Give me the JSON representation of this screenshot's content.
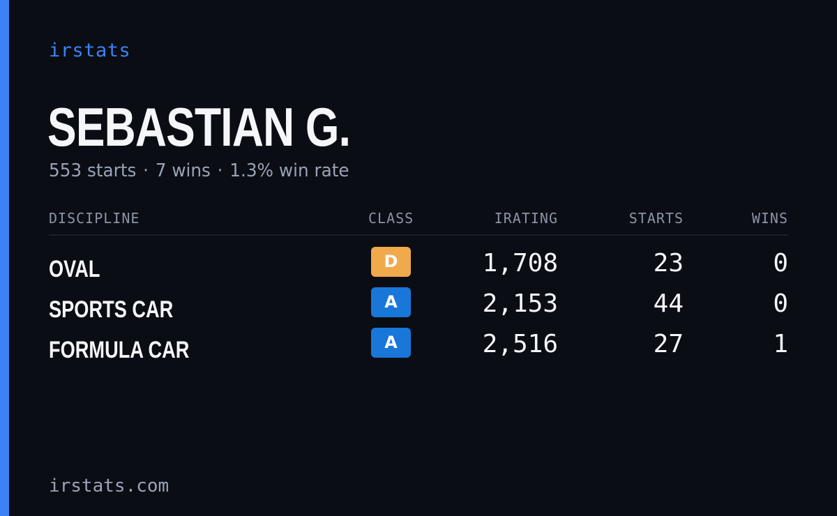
{
  "brand": "irstats",
  "driver": {
    "name": "SEBASTIAN G.",
    "summary": {
      "starts": "553 starts",
      "wins": "7 wins",
      "win_rate": "1.3% win rate",
      "separator": "·"
    }
  },
  "table": {
    "headers": {
      "discipline": "DISCIPLINE",
      "class": "CLASS",
      "irating": "IRATING",
      "starts": "STARTS",
      "wins": "WINS"
    },
    "rows": [
      {
        "discipline": "OVAL",
        "class": "D",
        "class_color": "#f0a94b",
        "irating": "1,708",
        "starts": "23",
        "wins": "0"
      },
      {
        "discipline": "SPORTS CAR",
        "class": "A",
        "class_color": "#1877d8",
        "irating": "2,153",
        "starts": "44",
        "wins": "0"
      },
      {
        "discipline": "FORMULA CAR",
        "class": "A",
        "class_color": "#1877d8",
        "irating": "2,516",
        "starts": "27",
        "wins": "1"
      }
    ]
  },
  "footer": "irstats.com",
  "colors": {
    "accent": "#3b82f6",
    "background": "#0a0d14"
  }
}
